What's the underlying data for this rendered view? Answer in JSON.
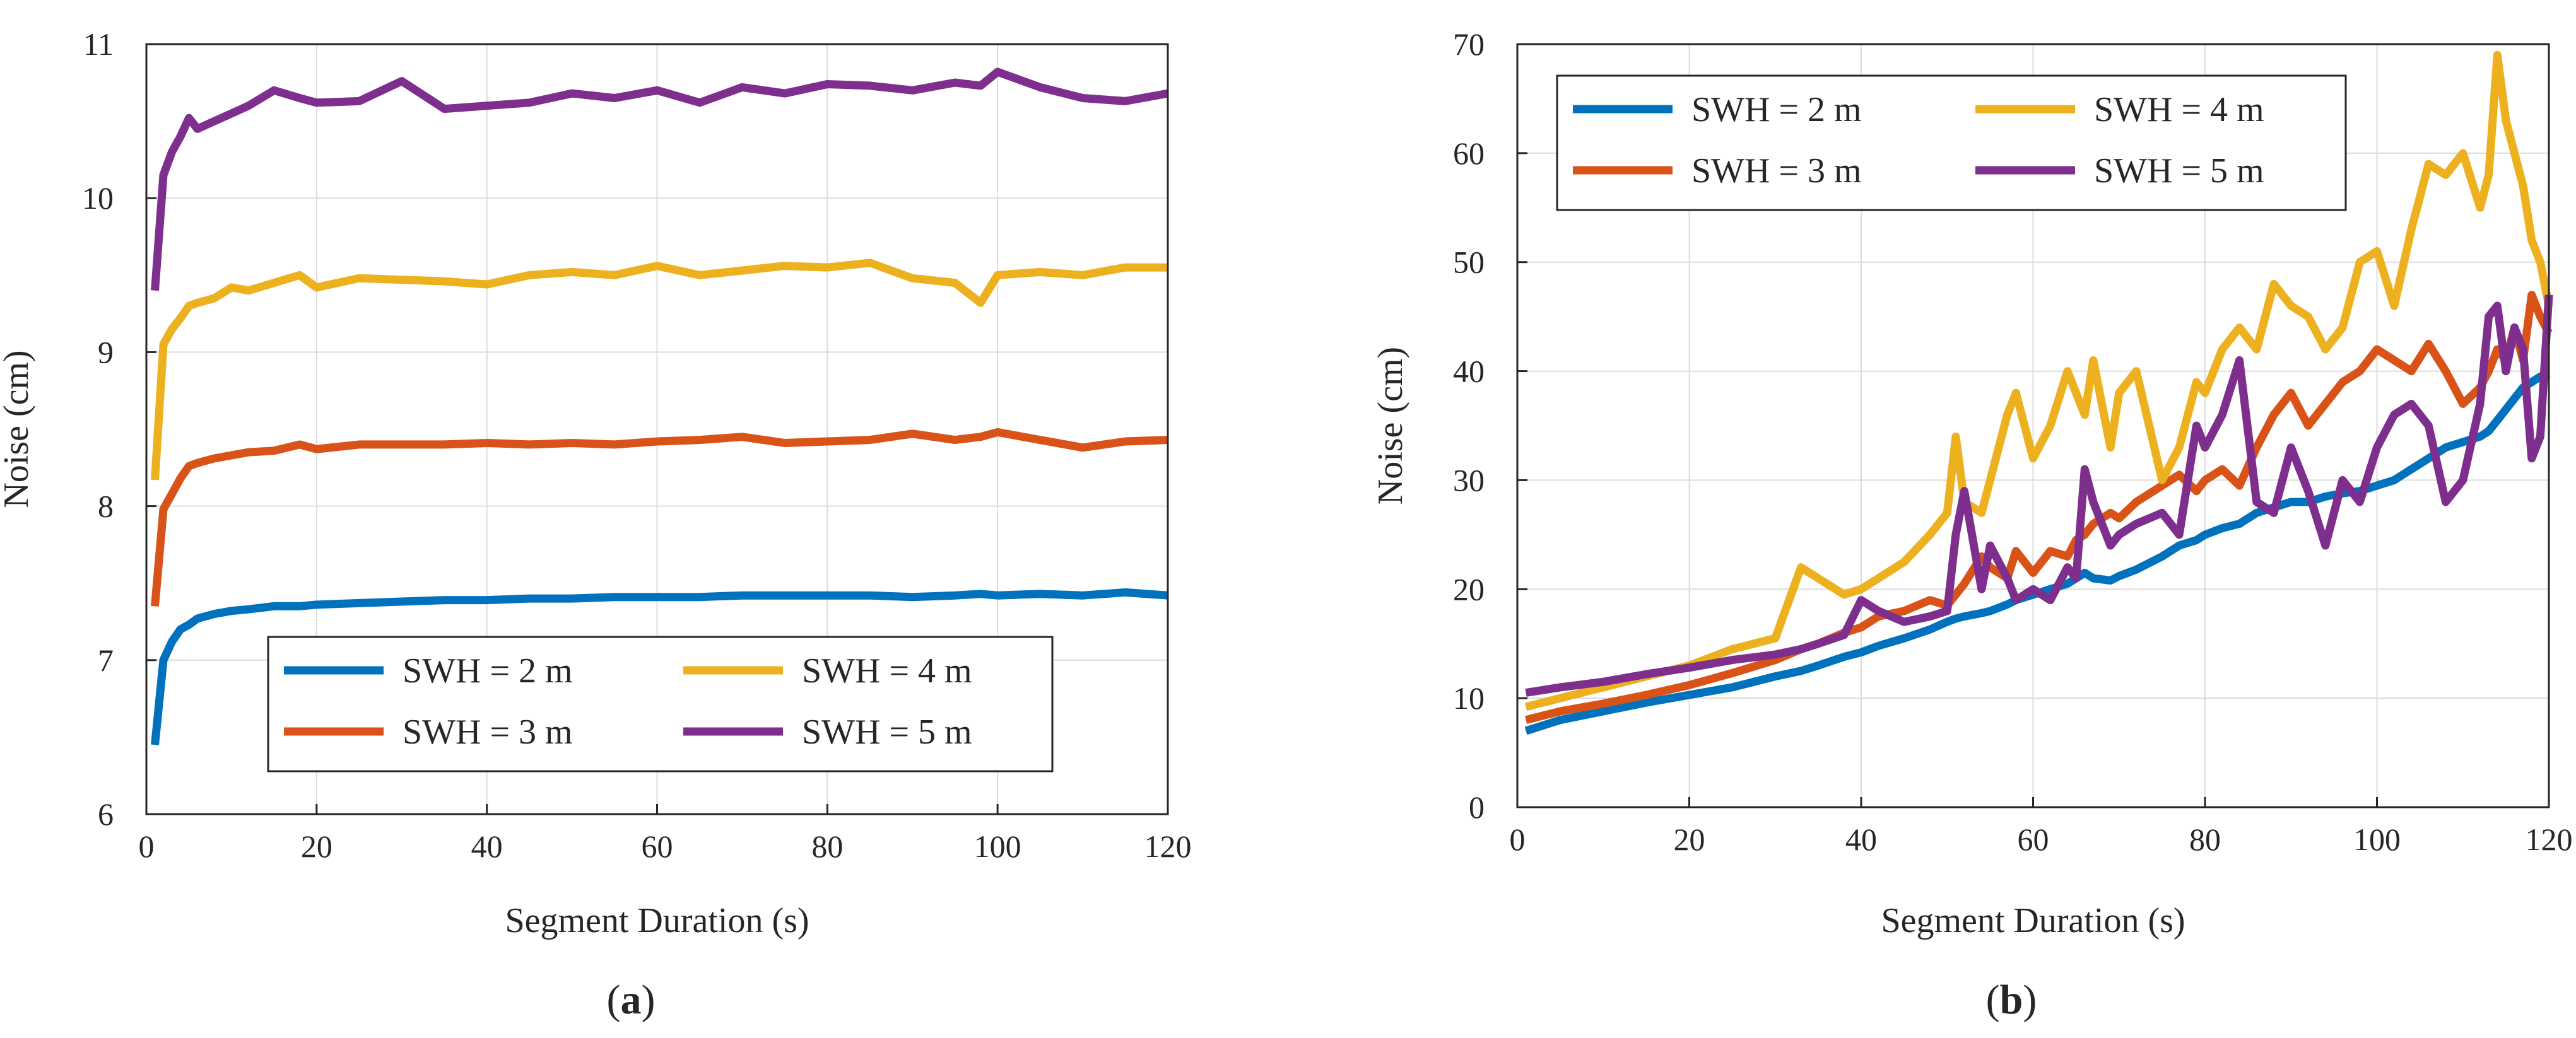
{
  "figure": {
    "panels": [
      {
        "label_open": "(",
        "label_letter": "a",
        "label_close": ")"
      },
      {
        "label_open": "(",
        "label_letter": "b",
        "label_close": ")"
      }
    ]
  },
  "chart_data": [
    {
      "type": "line",
      "panel": "a",
      "xlabel": "Segment Duration  (s)",
      "ylabel": "Noise (cm)",
      "xlim": [
        0,
        120
      ],
      "ylim": [
        6,
        11
      ],
      "xticks": [
        0,
        20,
        40,
        60,
        80,
        100,
        120
      ],
      "yticks": [
        6,
        7,
        8,
        9,
        10,
        11
      ],
      "grid": true,
      "legend_position": "bottom-center",
      "legend_columns": 2,
      "x": [
        1,
        2,
        3,
        4,
        5,
        6,
        8,
        10,
        12,
        15,
        18,
        20,
        25,
        30,
        35,
        40,
        45,
        50,
        55,
        60,
        65,
        70,
        75,
        80,
        85,
        90,
        95,
        98,
        100,
        105,
        110,
        115,
        120
      ],
      "series": [
        {
          "name": "SWH = 2 m",
          "color": "#0072BD",
          "values": [
            6.45,
            7.0,
            7.12,
            7.2,
            7.23,
            7.27,
            7.3,
            7.32,
            7.33,
            7.35,
            7.35,
            7.36,
            7.37,
            7.38,
            7.39,
            7.39,
            7.4,
            7.4,
            7.41,
            7.41,
            7.41,
            7.42,
            7.42,
            7.42,
            7.42,
            7.41,
            7.42,
            7.43,
            7.42,
            7.43,
            7.42,
            7.44,
            7.42
          ]
        },
        {
          "name": "SWH = 3 m",
          "color": "#D95319",
          "values": [
            7.35,
            7.98,
            8.08,
            8.18,
            8.26,
            8.28,
            8.31,
            8.33,
            8.35,
            8.36,
            8.4,
            8.37,
            8.4,
            8.4,
            8.4,
            8.41,
            8.4,
            8.41,
            8.4,
            8.42,
            8.43,
            8.45,
            8.41,
            8.42,
            8.43,
            8.47,
            8.43,
            8.45,
            8.48,
            8.43,
            8.38,
            8.42,
            8.43
          ]
        },
        {
          "name": "SWH = 4 m",
          "color": "#EDB120",
          "values": [
            8.17,
            9.05,
            9.15,
            9.22,
            9.3,
            9.32,
            9.35,
            9.42,
            9.4,
            9.45,
            9.5,
            9.42,
            9.48,
            9.47,
            9.46,
            9.44,
            9.5,
            9.52,
            9.5,
            9.56,
            9.5,
            9.53,
            9.56,
            9.55,
            9.58,
            9.48,
            9.45,
            9.32,
            9.5,
            9.52,
            9.5,
            9.55,
            9.55
          ]
        },
        {
          "name": "SWH = 5 m",
          "color": "#7E2F8E",
          "values": [
            9.4,
            10.15,
            10.3,
            10.4,
            10.52,
            10.45,
            10.5,
            10.55,
            10.6,
            10.7,
            10.65,
            10.62,
            10.63,
            10.76,
            10.58,
            10.6,
            10.62,
            10.68,
            10.65,
            10.7,
            10.62,
            10.72,
            10.68,
            10.74,
            10.73,
            10.7,
            10.75,
            10.73,
            10.82,
            10.72,
            10.65,
            10.63,
            10.68
          ]
        }
      ]
    },
    {
      "type": "line",
      "panel": "b",
      "xlabel": "Segment Duration (s)",
      "ylabel": "Noise (cm)",
      "xlim": [
        0,
        120
      ],
      "ylim": [
        0,
        70
      ],
      "xticks": [
        0,
        20,
        40,
        60,
        80,
        100,
        120
      ],
      "yticks": [
        0,
        10,
        20,
        30,
        40,
        50,
        60,
        70
      ],
      "grid": true,
      "legend_position": "top-left",
      "legend_columns": 2,
      "x": [
        1,
        5,
        10,
        15,
        20,
        25,
        30,
        33,
        35,
        38,
        40,
        42,
        45,
        48,
        50,
        51,
        52,
        54,
        55,
        57,
        58,
        60,
        62,
        64,
        65,
        66,
        67,
        69,
        70,
        72,
        75,
        77,
        79,
        80,
        82,
        84,
        86,
        88,
        90,
        92,
        94,
        96,
        98,
        100,
        102,
        104,
        106,
        108,
        110,
        112,
        113,
        114,
        115,
        116,
        117,
        118,
        119,
        120
      ],
      "series": [
        {
          "name": "SWH = 2 m",
          "color": "#0072BD",
          "values": [
            7.0,
            8.0,
            8.8,
            9.6,
            10.3,
            11.0,
            12.0,
            12.5,
            13.0,
            13.8,
            14.2,
            14.8,
            15.5,
            16.3,
            17.0,
            17.3,
            17.5,
            17.8,
            18.0,
            18.6,
            19.0,
            19.5,
            20.0,
            20.5,
            21.0,
            21.5,
            21.0,
            20.8,
            21.2,
            21.8,
            23.0,
            24.0,
            24.5,
            25.0,
            25.6,
            26.0,
            27.0,
            27.5,
            28.0,
            28.0,
            28.5,
            28.8,
            29.0,
            29.5,
            30.0,
            31.0,
            32.0,
            33.0,
            33.5,
            34.0,
            34.5,
            35.5,
            36.5,
            37.5,
            38.5,
            39.0,
            39.5,
            39.8
          ]
        },
        {
          "name": "SWH = 3 m",
          "color": "#D95319",
          "values": [
            8.0,
            8.8,
            9.5,
            10.3,
            11.2,
            12.3,
            13.5,
            14.5,
            15.0,
            16.0,
            16.5,
            17.5,
            18.0,
            19.0,
            18.5,
            19.5,
            20.5,
            23.0,
            22.0,
            21.0,
            23.5,
            21.5,
            23.5,
            23.0,
            24.5,
            25.0,
            26.0,
            27.0,
            26.5,
            28.0,
            29.5,
            30.5,
            29.0,
            30.0,
            31.0,
            29.5,
            33.0,
            36.0,
            38.0,
            35.0,
            37.0,
            39.0,
            40.0,
            42.0,
            41.0,
            40.0,
            42.5,
            40.0,
            37.0,
            38.5,
            40.0,
            42.0,
            41.0,
            44.0,
            41.0,
            47.0,
            45.0,
            43.5
          ]
        },
        {
          "name": "SWH = 4 m",
          "color": "#EDB120",
          "values": [
            9.2,
            10.0,
            11.0,
            12.0,
            13.0,
            14.5,
            15.5,
            22.0,
            21.0,
            19.5,
            20.0,
            21.0,
            22.5,
            25.0,
            27.0,
            34.0,
            28.0,
            27.0,
            30.0,
            36.0,
            38.0,
            32.0,
            35.0,
            40.0,
            38.0,
            36.0,
            41.0,
            33.0,
            38.0,
            40.0,
            30.0,
            33.0,
            39.0,
            38.0,
            42.0,
            44.0,
            42.0,
            48.0,
            46.0,
            45.0,
            42.0,
            44.0,
            50.0,
            51.0,
            46.0,
            53.0,
            59.0,
            58.0,
            60.0,
            55.0,
            58.0,
            69.0,
            63.0,
            60.0,
            57.0,
            52.0,
            50.0,
            46.0
          ]
        },
        {
          "name": "SWH = 5 m",
          "color": "#7E2F8E",
          "values": [
            10.5,
            11.0,
            11.5,
            12.2,
            12.8,
            13.5,
            14.0,
            14.5,
            15.0,
            15.8,
            19.0,
            18.0,
            17.0,
            17.5,
            18.0,
            25.0,
            29.0,
            20.0,
            24.0,
            21.0,
            19.0,
            20.0,
            19.0,
            22.0,
            21.0,
            31.0,
            28.0,
            24.0,
            25.0,
            26.0,
            27.0,
            25.0,
            35.0,
            33.0,
            36.0,
            41.0,
            28.0,
            27.0,
            33.0,
            29.0,
            24.0,
            30.0,
            28.0,
            33.0,
            36.0,
            37.0,
            35.0,
            28.0,
            30.0,
            37.0,
            45.0,
            46.0,
            40.0,
            44.0,
            42.0,
            32.0,
            34.0,
            47.0
          ]
        }
      ]
    }
  ]
}
